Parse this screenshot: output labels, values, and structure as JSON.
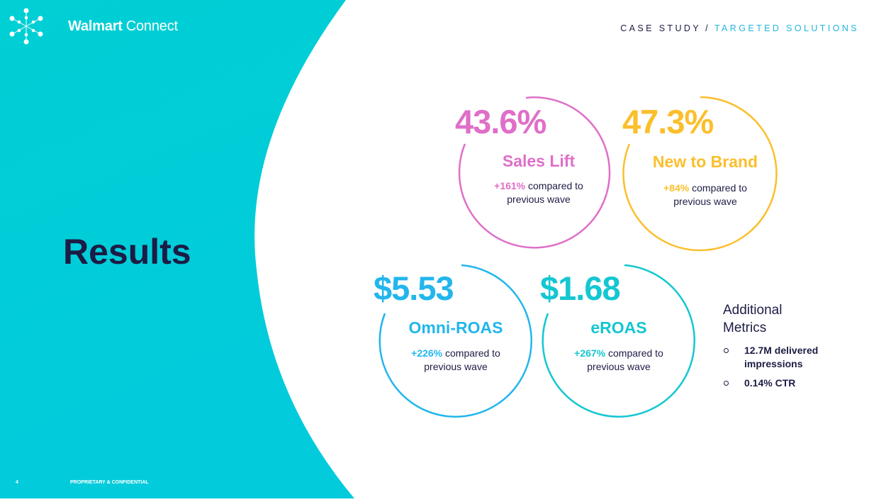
{
  "brand": {
    "name_bold": "Walmart",
    "name_regular": "Connect"
  },
  "header": {
    "section": "CASE STUDY",
    "separator": "/",
    "subsection": "TARGETED SOLUTIONS"
  },
  "title": "Results",
  "footer": {
    "page_number": "4",
    "confidential": "PROPRIETARY & CONFIDENTIAL"
  },
  "colors": {
    "teal": "#00cfd6",
    "navy": "#1c1c45",
    "pink": "#df6fc8",
    "yellow": "#fbbf2c",
    "blue": "#22b6ec",
    "cyan": "#14c7d2"
  },
  "metrics": [
    {
      "value": "43.6%",
      "label": "Sales Lift",
      "change": "+161%",
      "desc1": "compared to",
      "desc2": "previous wave"
    },
    {
      "value": "47.3%",
      "label": "New to Brand",
      "change": "+84%",
      "desc1": "compared to",
      "desc2": "previous wave"
    },
    {
      "value": "$5.53",
      "label": "Omni-ROAS",
      "change": "+226%",
      "desc1": "compared to",
      "desc2": "previous wave"
    },
    {
      "value": "$1.68",
      "label": "eROAS",
      "change": "+267%",
      "desc1": "compared to",
      "desc2": "previous wave"
    }
  ],
  "additional": {
    "heading_line1": "Additional",
    "heading_line2": "Metrics",
    "items": [
      "12.7M delivered impressions",
      "0.14% CTR"
    ]
  }
}
